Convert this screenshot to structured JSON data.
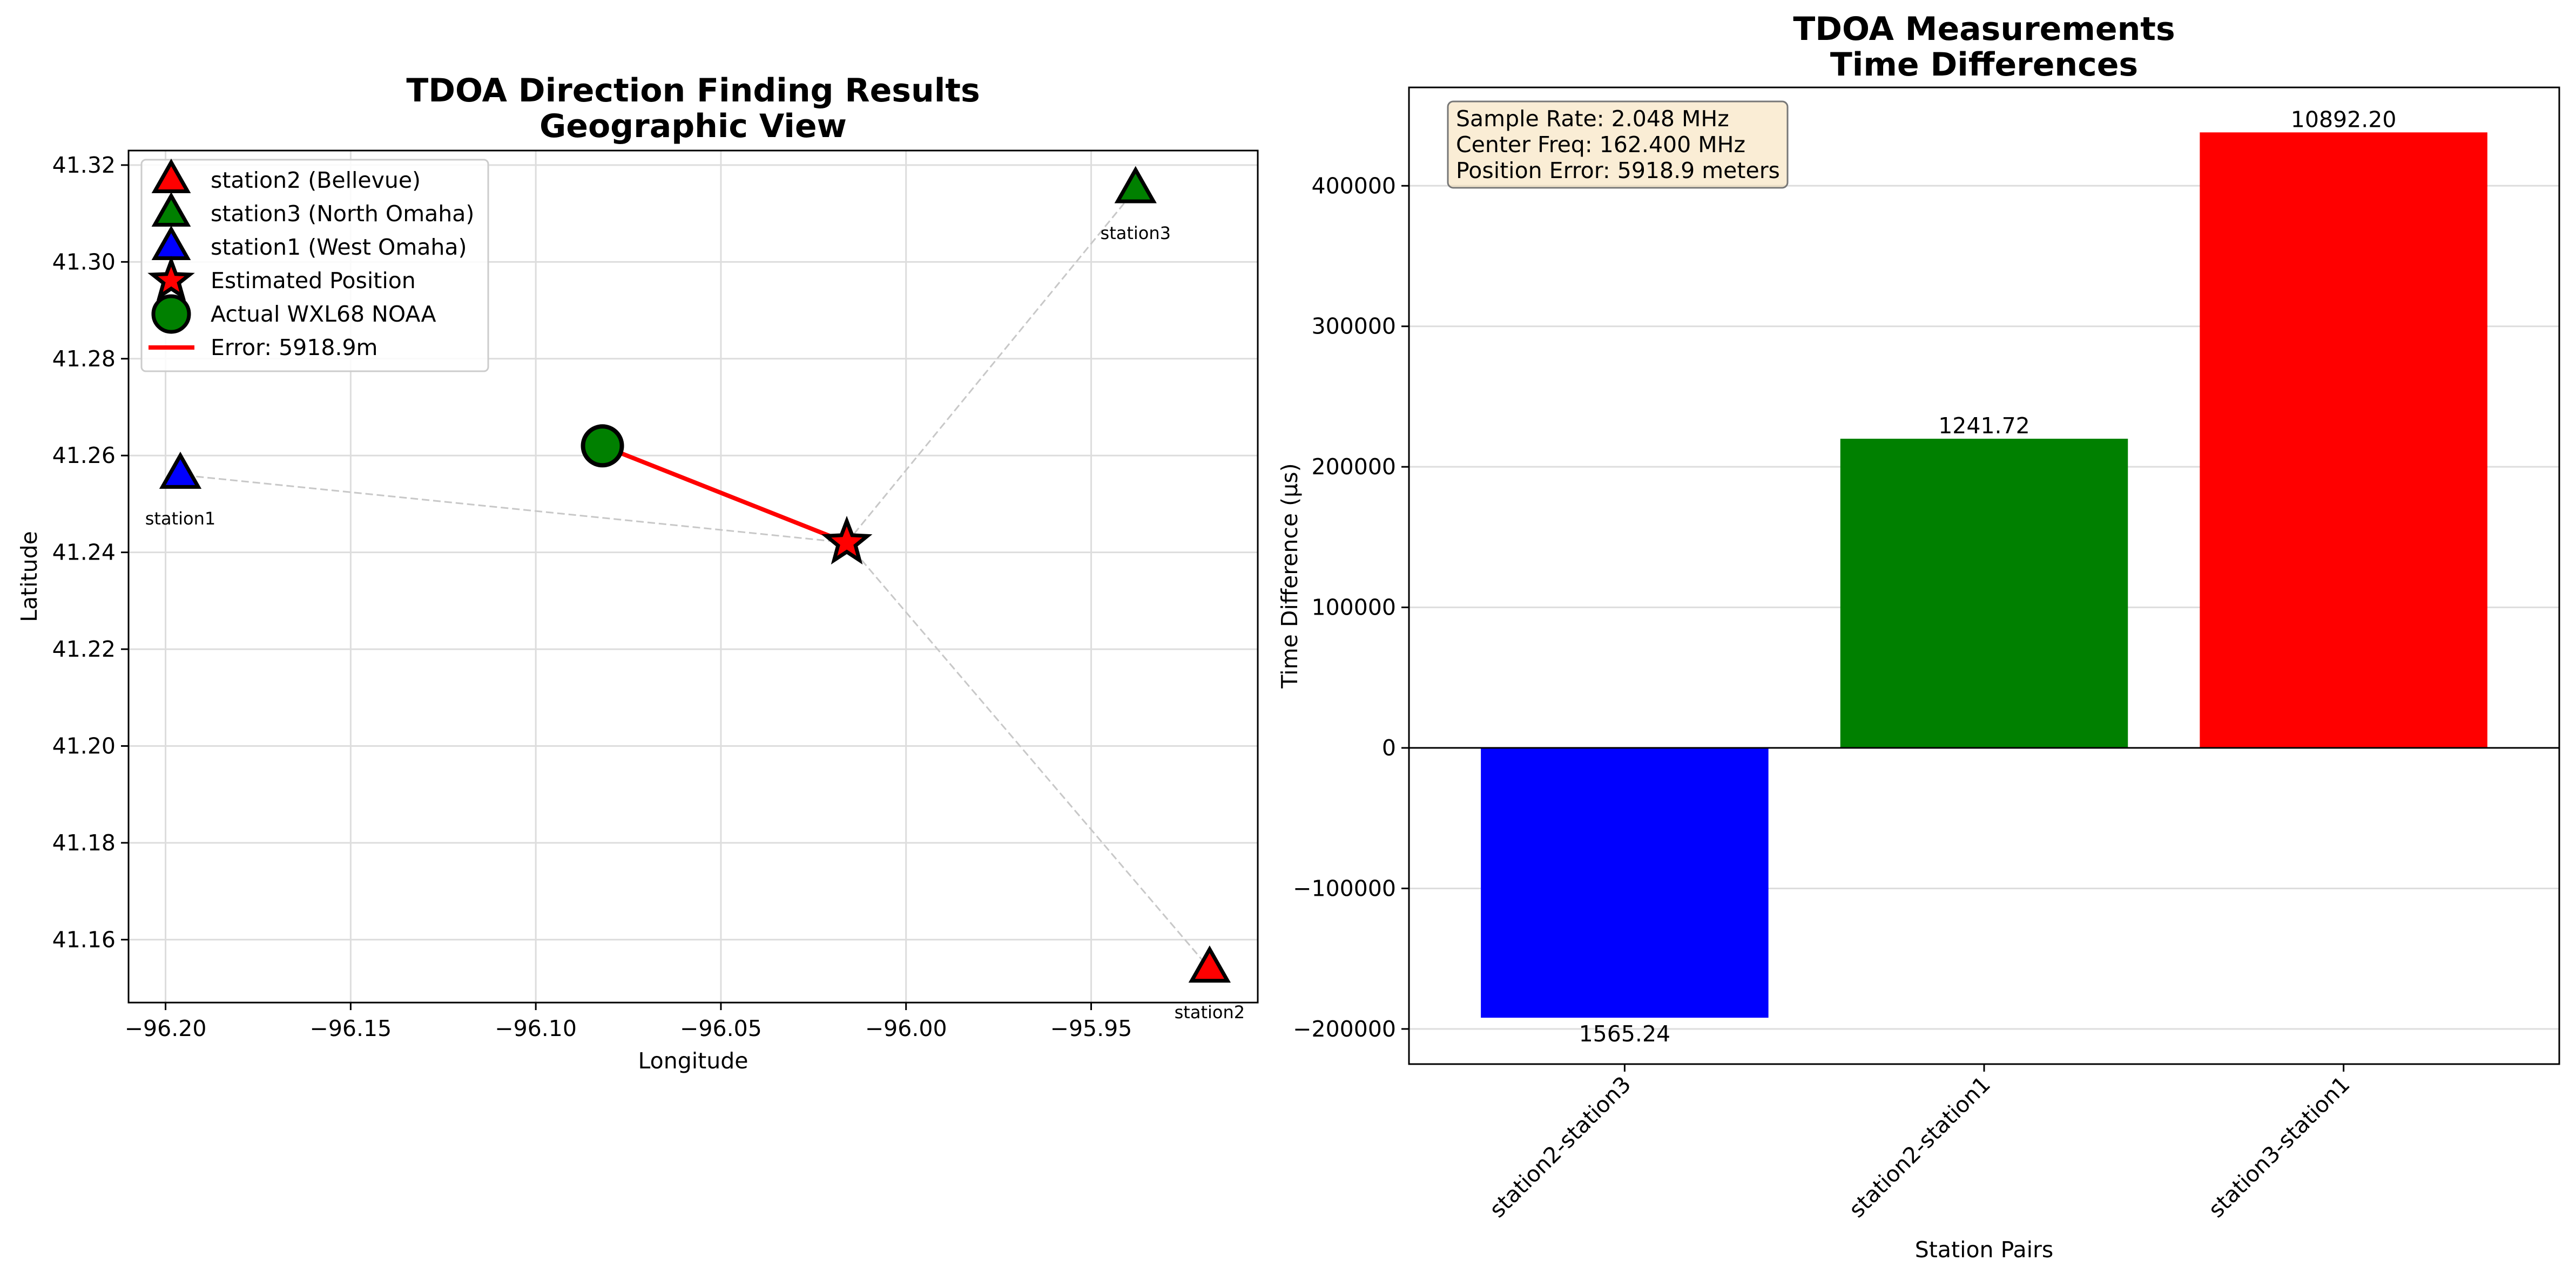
{
  "chart_data": [
    {
      "type": "scatter",
      "title": "TDOA Direction Finding Results\nGeographic View",
      "xlabel": "Longitude",
      "ylabel": "Latitude",
      "xlim": [
        -96.21,
        -95.905
      ],
      "ylim": [
        41.147,
        41.323
      ],
      "xticks": [
        -96.2,
        -96.15,
        -96.1,
        -96.05,
        -96.0,
        -95.95
      ],
      "xtick_labels": [
        "−96.20",
        "−96.15",
        "−96.10",
        "−96.05",
        "−96.00",
        "−95.95"
      ],
      "yticks": [
        41.16,
        41.18,
        41.2,
        41.22,
        41.24,
        41.26,
        41.28,
        41.3,
        41.32
      ],
      "ytick_labels": [
        "41.16",
        "41.18",
        "41.20",
        "41.22",
        "41.24",
        "41.26",
        "41.28",
        "41.30",
        "41.32"
      ],
      "grid": true,
      "legend_position": "upper-left",
      "stations": [
        {
          "name": "station2",
          "legend": "station2 (Bellevue)",
          "lon": -95.918,
          "lat": 41.154,
          "color": "#ff0000"
        },
        {
          "name": "station3",
          "legend": "station3 (North Omaha)",
          "lon": -95.938,
          "lat": 41.315,
          "color": "#008000"
        },
        {
          "name": "station1",
          "legend": "station1 (West Omaha)",
          "lon": -96.196,
          "lat": 41.256,
          "color": "#0000ff"
        }
      ],
      "estimated": {
        "legend": "Estimated Position",
        "lon": -96.016,
        "lat": 41.242,
        "color": "#ff0000"
      },
      "actual": {
        "legend": "Actual WXL68 NOAA",
        "lon": -96.082,
        "lat": 41.262,
        "color": "#008000"
      },
      "error_line": {
        "legend": "Error: 5918.9m",
        "color": "#ff0000"
      }
    },
    {
      "type": "bar",
      "title": "TDOA Measurements\nTime Differences",
      "xlabel": "Station Pairs",
      "ylabel": "Time Difference (µs)",
      "ylim": [
        -225000,
        470000
      ],
      "yticks": [
        -200000,
        -100000,
        0,
        100000,
        200000,
        300000,
        400000
      ],
      "ytick_labels": [
        "−200000",
        "−100000",
        "0",
        "100000",
        "200000",
        "300000",
        "400000"
      ],
      "grid": true,
      "categories": [
        "station2-station3",
        "station2-station1",
        "station3-station1"
      ],
      "values": [
        -192000,
        220000,
        438000
      ],
      "bar_labels": [
        "1565.24",
        "1241.72",
        "10892.20"
      ],
      "colors": [
        "#0000ff",
        "#008000",
        "#ff0000"
      ],
      "info_box": [
        "Sample Rate: 2.048 MHz",
        "Center Freq: 162.400 MHz",
        "Position Error: 5918.9 meters"
      ],
      "info_box_position": "upper-left"
    }
  ]
}
